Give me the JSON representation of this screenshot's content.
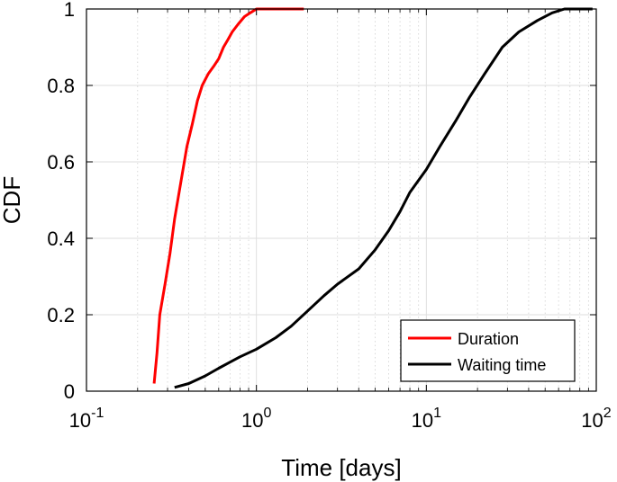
{
  "chart_data": {
    "type": "line",
    "title": "",
    "xlabel": "Time [days]",
    "ylabel": "CDF",
    "xscale": "log",
    "xlim": [
      0.1,
      100
    ],
    "ylim": [
      0,
      1
    ],
    "grid": true,
    "legend_position": "bottom-right",
    "x_ticks": [
      {
        "value": 0.1,
        "base": "10",
        "exp": "-1"
      },
      {
        "value": 1,
        "base": "10",
        "exp": "0"
      },
      {
        "value": 10,
        "base": "10",
        "exp": "1"
      },
      {
        "value": 100,
        "base": "10",
        "exp": "2"
      }
    ],
    "y_ticks": [
      {
        "value": 0,
        "label": "0"
      },
      {
        "value": 0.2,
        "label": "0.2"
      },
      {
        "value": 0.4,
        "label": "0.4"
      },
      {
        "value": 0.6,
        "label": "0.6"
      },
      {
        "value": 0.8,
        "label": "0.8"
      },
      {
        "value": 1,
        "label": "1"
      }
    ],
    "series": [
      {
        "name": "Duration",
        "color": "#ff0000",
        "points": [
          [
            0.25,
            0.02
          ],
          [
            0.26,
            0.1
          ],
          [
            0.27,
            0.2
          ],
          [
            0.29,
            0.28
          ],
          [
            0.31,
            0.36
          ],
          [
            0.33,
            0.45
          ],
          [
            0.36,
            0.55
          ],
          [
            0.39,
            0.64
          ],
          [
            0.42,
            0.7
          ],
          [
            0.45,
            0.76
          ],
          [
            0.48,
            0.8
          ],
          [
            0.52,
            0.83
          ],
          [
            0.56,
            0.85
          ],
          [
            0.6,
            0.87
          ],
          [
            0.64,
            0.9
          ],
          [
            0.68,
            0.92
          ],
          [
            0.72,
            0.94
          ],
          [
            0.78,
            0.96
          ],
          [
            0.85,
            0.98
          ],
          [
            0.92,
            0.99
          ],
          [
            1.0,
            1.0
          ],
          [
            1.5,
            1.0
          ],
          [
            1.9,
            1.0
          ]
        ]
      },
      {
        "name": "Waiting time",
        "color": "#000000",
        "points": [
          [
            0.33,
            0.01
          ],
          [
            0.4,
            0.02
          ],
          [
            0.5,
            0.04
          ],
          [
            0.6,
            0.06
          ],
          [
            0.8,
            0.09
          ],
          [
            1.0,
            0.11
          ],
          [
            1.3,
            0.14
          ],
          [
            1.6,
            0.17
          ],
          [
            2.0,
            0.21
          ],
          [
            2.5,
            0.25
          ],
          [
            3.0,
            0.28
          ],
          [
            4.0,
            0.32
          ],
          [
            5.0,
            0.37
          ],
          [
            6.0,
            0.42
          ],
          [
            7.0,
            0.47
          ],
          [
            8.0,
            0.52
          ],
          [
            10.0,
            0.58
          ],
          [
            12.0,
            0.64
          ],
          [
            15.0,
            0.71
          ],
          [
            18.0,
            0.77
          ],
          [
            22.0,
            0.83
          ],
          [
            28.0,
            0.9
          ],
          [
            35.0,
            0.94
          ],
          [
            45.0,
            0.97
          ],
          [
            55.0,
            0.99
          ],
          [
            65.0,
            1.0
          ],
          [
            95.0,
            1.0
          ]
        ]
      }
    ]
  }
}
